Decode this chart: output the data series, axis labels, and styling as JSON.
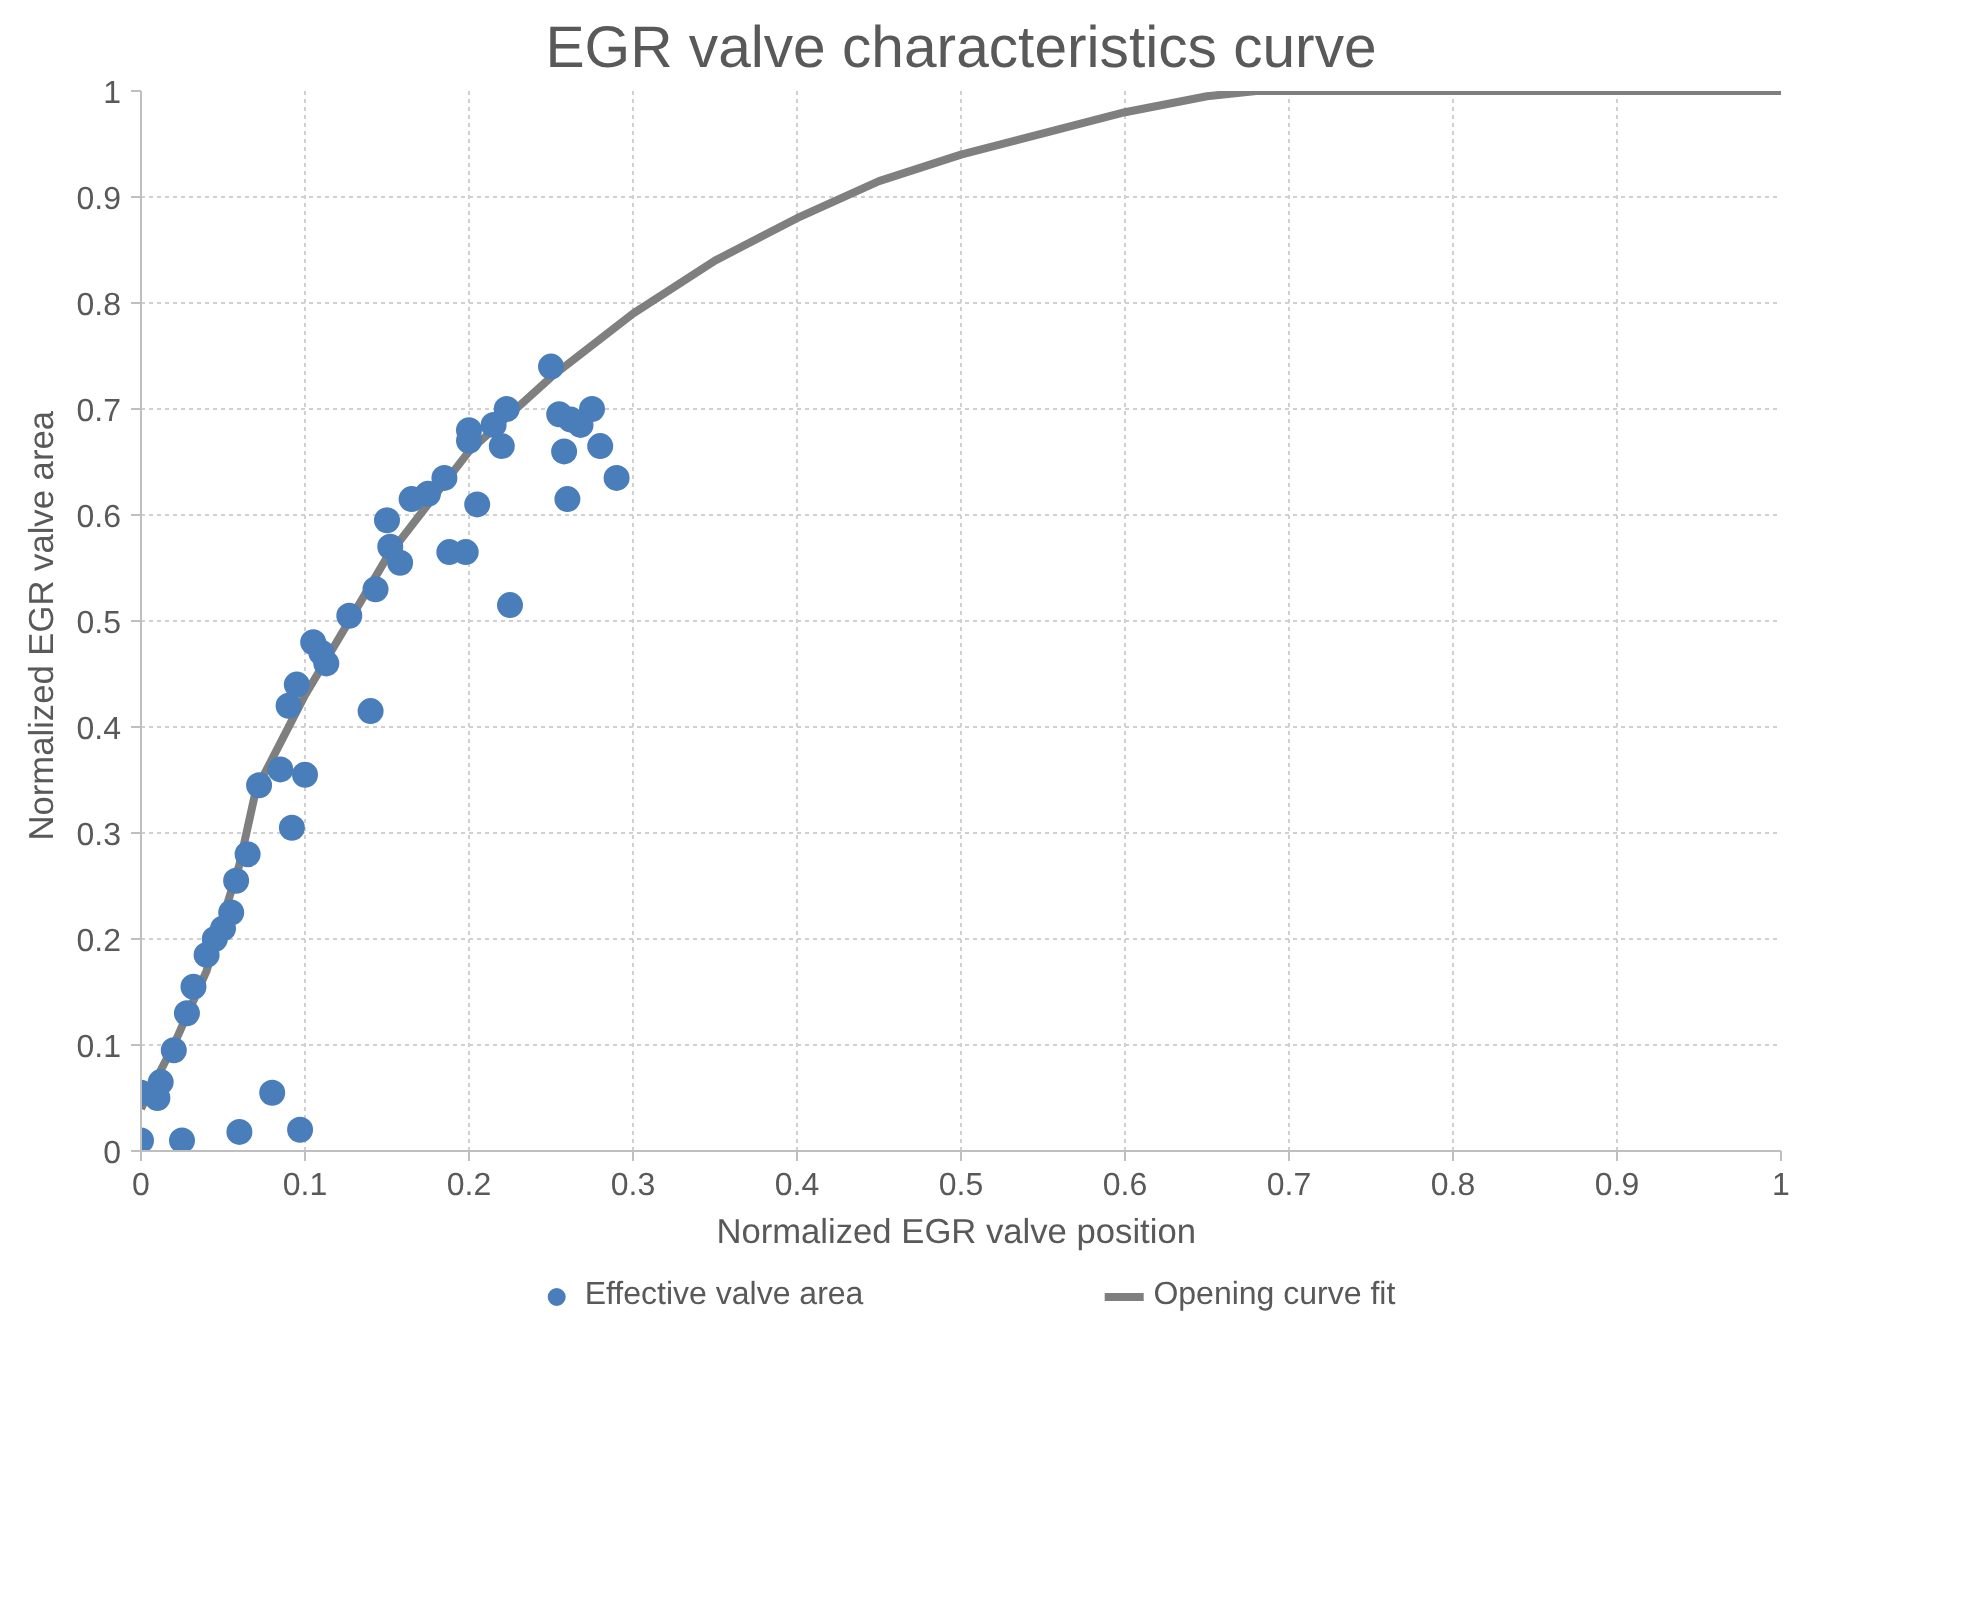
{
  "chart_data": {
    "type": "scatter",
    "title": "EGR valve characteristics curve",
    "xlabel": "Normalized EGR  valve position",
    "ylabel": "Normalized EGR  valve area",
    "xlim": [
      0,
      1
    ],
    "ylim": [
      0,
      1
    ],
    "xticks": [
      0,
      0.1,
      0.2,
      0.3,
      0.4,
      0.5,
      0.6,
      0.7,
      0.8,
      0.9,
      1
    ],
    "yticks": [
      0,
      0.1,
      0.2,
      0.3,
      0.4,
      0.5,
      0.6,
      0.7,
      0.8,
      0.9,
      1
    ],
    "grid": true,
    "legend": "bottom",
    "series": [
      {
        "name": "Effective valve area",
        "marker": "circle",
        "color": "#4a7ebb",
        "x": [
          0,
          0,
          0.01,
          0.012,
          0.02,
          0.028,
          0.032,
          0.04,
          0.045,
          0.05,
          0.055,
          0.058,
          0.065,
          0.072,
          0.085,
          0.09,
          0.092,
          0.095,
          0.1,
          0.105,
          0.11,
          0.113,
          0.127,
          0.14,
          0.143,
          0.15,
          0.152,
          0.158,
          0.165,
          0.175,
          0.185,
          0.188,
          0.198,
          0.2,
          0.2,
          0.205,
          0.215,
          0.22,
          0.223,
          0.225,
          0.25,
          0.255,
          0.258,
          0.26,
          0.262,
          0.268,
          0.275,
          0.28,
          0.29,
          0.025,
          0.06,
          0.08,
          0.097
        ],
        "values": [
          0.01,
          0.055,
          0.05,
          0.065,
          0.095,
          0.13,
          0.155,
          0.185,
          0.2,
          0.21,
          0.225,
          0.255,
          0.28,
          0.345,
          0.36,
          0.42,
          0.305,
          0.44,
          0.355,
          0.48,
          0.47,
          0.46,
          0.505,
          0.415,
          0.53,
          0.595,
          0.57,
          0.555,
          0.615,
          0.62,
          0.635,
          0.565,
          0.565,
          0.67,
          0.68,
          0.61,
          0.685,
          0.665,
          0.7,
          0.515,
          0.74,
          0.695,
          0.66,
          0.615,
          0.69,
          0.685,
          0.7,
          0.665,
          0.635,
          0.01,
          0.018,
          0.055,
          0.02
        ]
      },
      {
        "name": "Opening curve fit",
        "type": "line",
        "line_style": "solid",
        "color": "#7f7f7f",
        "x": [
          0,
          0.02,
          0.04,
          0.06,
          0.07,
          0.1,
          0.15,
          0.2,
          0.25,
          0.3,
          0.35,
          0.4,
          0.45,
          0.5,
          0.55,
          0.6,
          0.65,
          0.68,
          1
        ],
        "values": [
          0.04,
          0.1,
          0.17,
          0.27,
          0.34,
          0.43,
          0.56,
          0.66,
          0.73,
          0.79,
          0.84,
          0.88,
          0.915,
          0.94,
          0.96,
          0.98,
          0.995,
          1,
          1
        ]
      }
    ]
  }
}
